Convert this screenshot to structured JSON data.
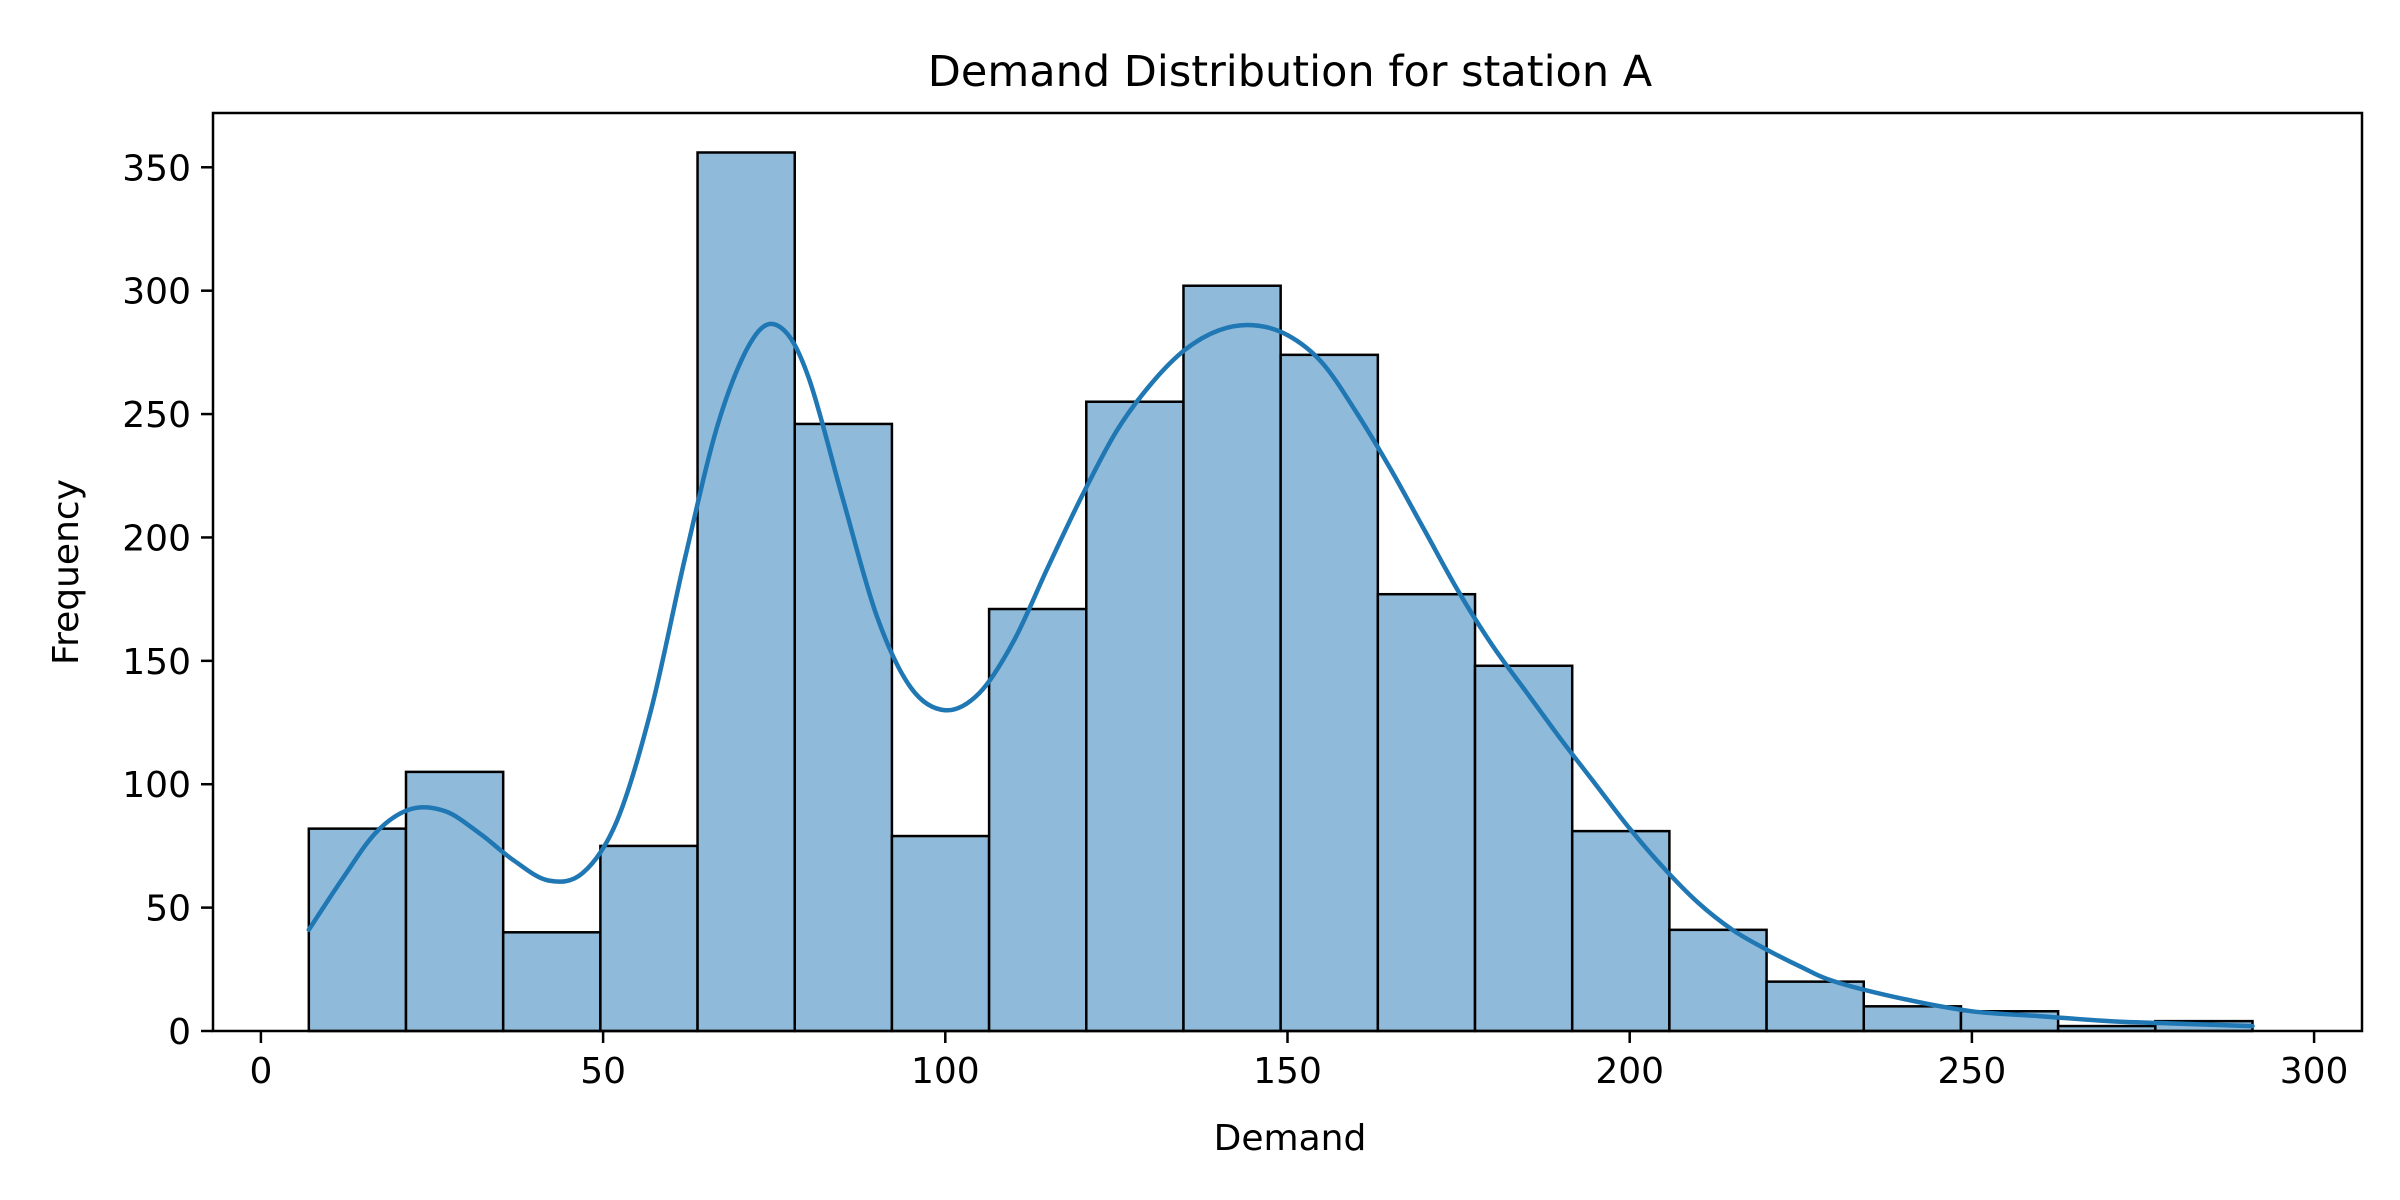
{
  "chart_data": {
    "type": "bar",
    "title": "Demand Distribution for station A",
    "xlabel": "Demand",
    "ylabel": "Frequency",
    "xlim": [
      -7,
      307
    ],
    "ylim": [
      0,
      372
    ],
    "xticks": [
      0,
      50,
      100,
      150,
      200,
      250,
      300
    ],
    "yticks": [
      0,
      50,
      100,
      150,
      200,
      250,
      300,
      350
    ],
    "grid": false,
    "bins": {
      "edges": [
        7,
        21.2,
        35.4,
        49.6,
        63.8,
        78,
        92.2,
        106.4,
        120.6,
        134.8,
        149,
        163.2,
        177.4,
        191.6,
        205.8,
        220,
        234.2,
        248.4,
        262.6,
        276.8,
        291
      ],
      "counts": [
        82,
        105,
        40,
        75,
        356,
        246,
        79,
        171,
        255,
        302,
        274,
        177,
        148,
        81,
        41,
        20,
        10,
        8,
        2,
        4
      ]
    },
    "kde": {
      "name": "density estimate",
      "x": [
        7,
        12,
        17,
        22,
        27,
        32,
        37,
        42,
        47,
        52,
        57,
        62,
        67,
        72,
        76,
        80,
        85,
        90,
        95,
        100,
        105,
        110,
        115,
        120,
        125,
        130,
        135,
        140,
        145,
        150,
        155,
        160,
        165,
        170,
        175,
        180,
        185,
        190,
        195,
        200,
        205,
        210,
        215,
        220,
        225,
        230,
        240,
        250,
        260,
        270,
        280,
        291
      ],
      "y": [
        41,
        62,
        81,
        90,
        89,
        80,
        69,
        61,
        64,
        85,
        130,
        192,
        248,
        281,
        285,
        265,
        216,
        168,
        139,
        130,
        137,
        158,
        188,
        217,
        243,
        262,
        276,
        284,
        286,
        282,
        271,
        251,
        228,
        203,
        178,
        156,
        137,
        118,
        100,
        82,
        66,
        52,
        41,
        33,
        26,
        20,
        13,
        8,
        6,
        4,
        3,
        2
      ]
    },
    "colors": {
      "bar_fill": "#8fbad9",
      "bar_edge": "#000000",
      "line": "#1f77b4",
      "axes": "#000000"
    }
  }
}
